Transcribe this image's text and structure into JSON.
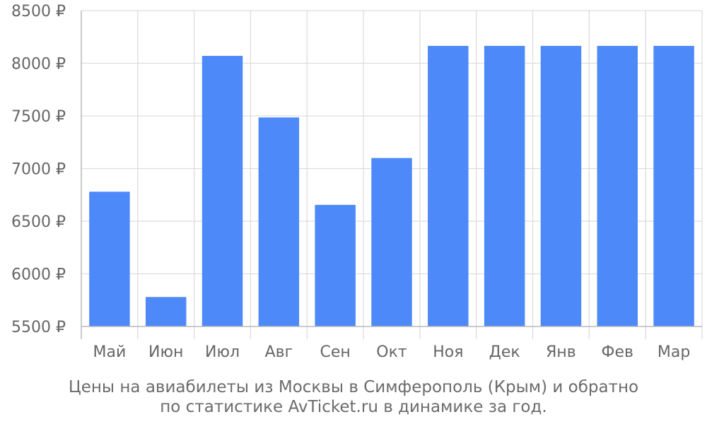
{
  "chart_data": {
    "type": "bar",
    "categories": [
      "Май",
      "Июн",
      "Июл",
      "Авг",
      "Сен",
      "Окт",
      "Ноя",
      "Дек",
      "Янв",
      "Фев",
      "Мар"
    ],
    "values": [
      6780,
      5780,
      8070,
      7485,
      6655,
      7100,
      8165,
      8165,
      8165,
      8165,
      8165
    ],
    "ylim": [
      5500,
      8500
    ],
    "yticks": [
      5500,
      6000,
      6500,
      7000,
      7500,
      8000,
      8500
    ],
    "ytick_suffix": " ₽",
    "grid": true,
    "legend": "none",
    "colors": {
      "bar": "#4d89f9",
      "grid": "#dddddd",
      "axis": "#bbbbbb",
      "text": "#666666"
    }
  },
  "caption": {
    "line1": "Цены на авиабилеты из Москвы в Симферополь (Крым) и обратно",
    "line2": "по статистике AvTicket.ru в динамике за год."
  }
}
